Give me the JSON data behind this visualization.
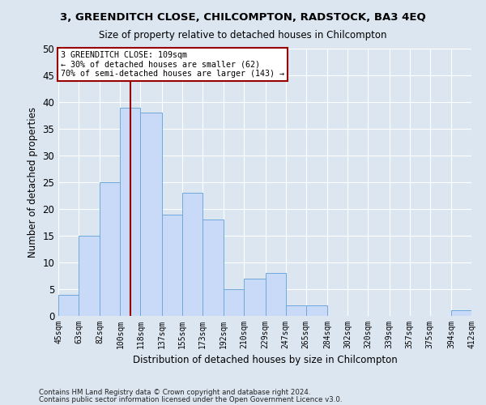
{
  "title1": "3, GREENDITCH CLOSE, CHILCOMPTON, RADSTOCK, BA3 4EQ",
  "title2": "Size of property relative to detached houses in Chilcompton",
  "xlabel": "Distribution of detached houses by size in Chilcompton",
  "ylabel": "Number of detached properties",
  "bin_edges": [
    45,
    63,
    82,
    100,
    118,
    137,
    155,
    173,
    192,
    210,
    229,
    247,
    265,
    284,
    302,
    320,
    339,
    357,
    375,
    394,
    412
  ],
  "bar_vals": [
    4,
    15,
    25,
    39,
    38,
    19,
    23,
    18,
    5,
    7,
    8,
    2,
    2,
    0,
    0,
    0,
    0,
    0,
    0,
    1
  ],
  "bar_color": "#c9daf8",
  "bar_edge_color": "#6fa8dc",
  "vline_x": 109,
  "vline_color": "#990000",
  "annotation_line1": "3 GREENDITCH CLOSE: 109sqm",
  "annotation_line2": "← 30% of detached houses are smaller (62)",
  "annotation_line3": "70% of semi-detached houses are larger (143) →",
  "annotation_box_color": "#ffffff",
  "annotation_box_edge": "#990000",
  "ylim": [
    0,
    50
  ],
  "yticks": [
    0,
    5,
    10,
    15,
    20,
    25,
    30,
    35,
    40,
    45,
    50
  ],
  "tick_labels": [
    "45sqm",
    "63sqm",
    "82sqm",
    "100sqm",
    "118sqm",
    "137sqm",
    "155sqm",
    "173sqm",
    "192sqm",
    "210sqm",
    "229sqm",
    "247sqm",
    "265sqm",
    "284sqm",
    "302sqm",
    "320sqm",
    "339sqm",
    "357sqm",
    "375sqm",
    "394sqm",
    "412sqm"
  ],
  "footnote1": "Contains HM Land Registry data © Crown copyright and database right 2024.",
  "footnote2": "Contains public sector information licensed under the Open Government Licence v3.0.",
  "bg_color": "#dce6f1",
  "plot_bg_color": "#dce6f1",
  "grid_color": "#ffffff"
}
